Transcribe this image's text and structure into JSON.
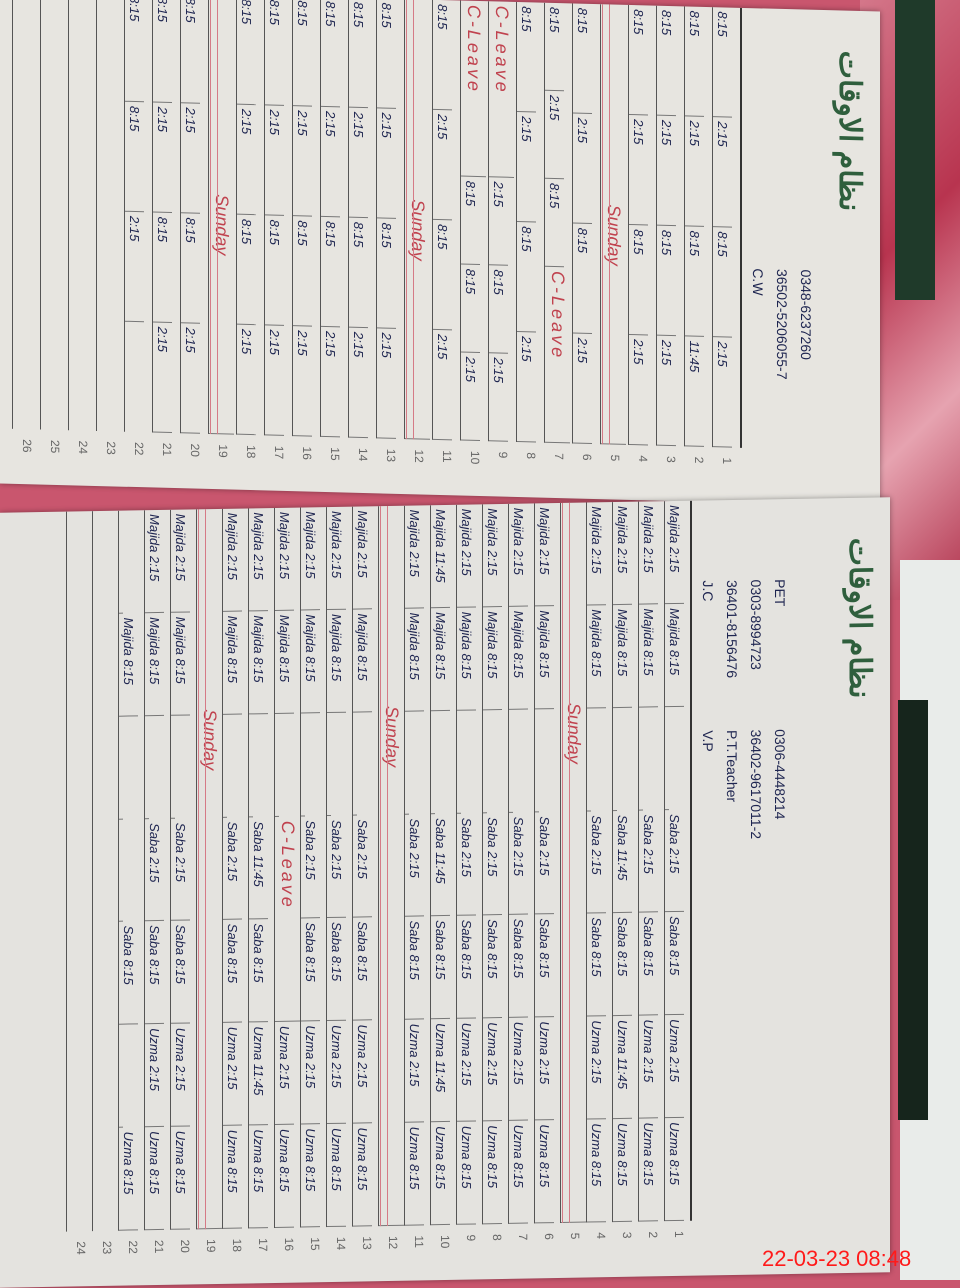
{
  "timestamp": "22-03-23  08:48",
  "top_page": {
    "header": {
      "fields": [
        "C.W",
        "36502-5206055-7",
        "0348-6237260"
      ],
      "title": "نظام الاوقات"
    },
    "sunday_label": "Sunday",
    "leave_label": "C-Leave",
    "row_numbers": [
      "1",
      "2",
      "3",
      "4",
      "5",
      "6",
      "7",
      "8",
      "9",
      "10",
      "11",
      "12",
      "13",
      "14",
      "15",
      "16",
      "17",
      "18",
      "19",
      "20",
      "21",
      "22",
      "23",
      "24",
      "25",
      "26"
    ],
    "rows": [
      [
        "8:15",
        "2:15",
        "8:15",
        "2:15"
      ],
      [
        "8:15",
        "2:15",
        "8:15",
        "11:45"
      ],
      [
        "8:15",
        "2:15",
        "8:15",
        "2:15"
      ],
      [
        "8:15",
        "2:15",
        "8:15",
        "2:15"
      ],
      [
        "Sunday"
      ],
      [
        "8:15",
        "2:15",
        "8:15",
        "2:15"
      ],
      [
        "8:15",
        "2:15",
        "8:15",
        "C-Leave"
      ],
      [
        "8:15",
        "2:15",
        "8:15",
        "2:15"
      ],
      [
        "C-Leave",
        "2:15",
        "8:15",
        "2:15"
      ],
      [
        "C-Leave",
        "8:15",
        "8:15",
        "2:15"
      ],
      [
        "8:15",
        "2:15",
        "8:15",
        "2:15"
      ],
      [
        "Sunday"
      ],
      [
        "8:15",
        "2:15",
        "8:15",
        "2:15"
      ],
      [
        "8:15",
        "2:15",
        "8:15",
        "2:15"
      ],
      [
        "8:15",
        "2:15",
        "8:15",
        "2:15"
      ],
      [
        "8:15",
        "2:15",
        "8:15",
        "2:15"
      ],
      [
        "8:15",
        "2:15",
        "8:15",
        "2:15"
      ],
      [
        "8:15",
        "2:15",
        "8:15",
        "2:15"
      ],
      [
        "Sunday"
      ],
      [
        "8:15",
        "2:15",
        "8:15",
        "2:15"
      ],
      [
        "8:15",
        "2:15",
        "8:15",
        "2:15"
      ],
      [
        "8:15",
        "8:15",
        "2:15"
      ],
      [],
      [],
      [],
      []
    ]
  },
  "bottom_page": {
    "header": {
      "fields": [
        "J.C",
        "36401-8156476",
        "0303-8994723",
        "PET",
        "V.P",
        "P.T.Teacher",
        "36402-9617011-2",
        "0306-4448214"
      ],
      "title": "نظام الاوقات"
    },
    "sunday_label": "Sunday",
    "leave_label": "C-Leave",
    "row_numbers": [
      "1",
      "2",
      "3",
      "4",
      "5",
      "6",
      "7",
      "8",
      "9",
      "10",
      "11",
      "12",
      "13",
      "14",
      "15",
      "16",
      "17",
      "18",
      "19",
      "20",
      "21",
      "22",
      "23",
      "24"
    ],
    "rows": [
      [
        "Majida 2:15",
        "Majida 8:15",
        "",
        "Saba 2:15",
        "Saba 8:15",
        "Uzma 2:15",
        "Uzma 8:15"
      ],
      [
        "Majida 2:15",
        "Majida 8:15",
        "",
        "Saba 2:15",
        "Saba 8:15",
        "Uzma 2:15",
        "Uzma 8:15"
      ],
      [
        "Majida 2:15",
        "Majida 8:15",
        "",
        "Saba 11:45",
        "Saba 8:15",
        "Uzma 11:45",
        "Uzma 8:15"
      ],
      [
        "Majida 2:15",
        "Majida 8:15",
        "",
        "Saba 2:15",
        "Saba 8:15",
        "Uzma 2:15",
        "Uzma 8:15"
      ],
      [
        "Sunday"
      ],
      [
        "Majida 2:15",
        "Majida 8:15",
        "",
        "Saba 2:15",
        "Saba 8:15",
        "Uzma 2:15",
        "Uzma 8:15"
      ],
      [
        "Majida 2:15",
        "Majida 8:15",
        "",
        "Saba 2:15",
        "Saba 8:15",
        "Uzma 2:15",
        "Uzma 8:15"
      ],
      [
        "Majida 2:15",
        "Majida 8:15",
        "",
        "Saba 2:15",
        "Saba 8:15",
        "Uzma 2:15",
        "Uzma 8:15"
      ],
      [
        "Majida 2:15",
        "Majida 8:15",
        "",
        "Saba 2:15",
        "Saba 8:15",
        "Uzma 2:15",
        "Uzma 8:15"
      ],
      [
        "Majida 11:45",
        "Majida 8:15",
        "",
        "Saba 11:45",
        "Saba 8:15",
        "Uzma 11:45",
        "Uzma 8:15"
      ],
      [
        "Majida 2:15",
        "Majida 8:15",
        "",
        "Saba 2:15",
        "Saba 8:15",
        "Uzma 2:15",
        "Uzma 8:15"
      ],
      [
        "Sunday"
      ],
      [
        "Majida 2:15",
        "Majida 8:15",
        "",
        "Saba 2:15",
        "Saba 8:15",
        "Uzma 2:15",
        "Uzma 8:15"
      ],
      [
        "Majida 2:15",
        "Majida 8:15",
        "",
        "Saba 2:15",
        "Saba 8:15",
        "Uzma 2:15",
        "Uzma 8:15"
      ],
      [
        "Majida 2:15",
        "Majida 8:15",
        "",
        "Saba 2:15",
        "Saba 8:15",
        "Uzma 2:15",
        "Uzma 8:15"
      ],
      [
        "Majida 2:15",
        "Majida 8:15",
        "",
        "C-Leave",
        "Uzma 2:15",
        "Uzma 8:15"
      ],
      [
        "Majida 2:15",
        "Majida 8:15",
        "",
        "Saba 11:45",
        "Saba 8:15",
        "Uzma 11:45",
        "Uzma 8:15"
      ],
      [
        "Majida 2:15",
        "Majida 8:15",
        "",
        "Saba 2:15",
        "Saba 8:15",
        "Uzma 2:15",
        "Uzma 8:15"
      ],
      [
        "Sunday"
      ],
      [
        "Majida 2:15",
        "Majida 8:15",
        "",
        "Saba 2:15",
        "Saba 8:15",
        "Uzma 2:15",
        "Uzma 8:15"
      ],
      [
        "Majida 2:15",
        "Majida 8:15",
        "",
        "Saba 2:15",
        "Saba 8:15",
        "Uzma 2:15",
        "Uzma 8:15"
      ],
      [
        "",
        "Majida 8:15",
        "",
        "",
        "Saba 8:15",
        "",
        "Uzma 8:15"
      ],
      [],
      []
    ]
  }
}
